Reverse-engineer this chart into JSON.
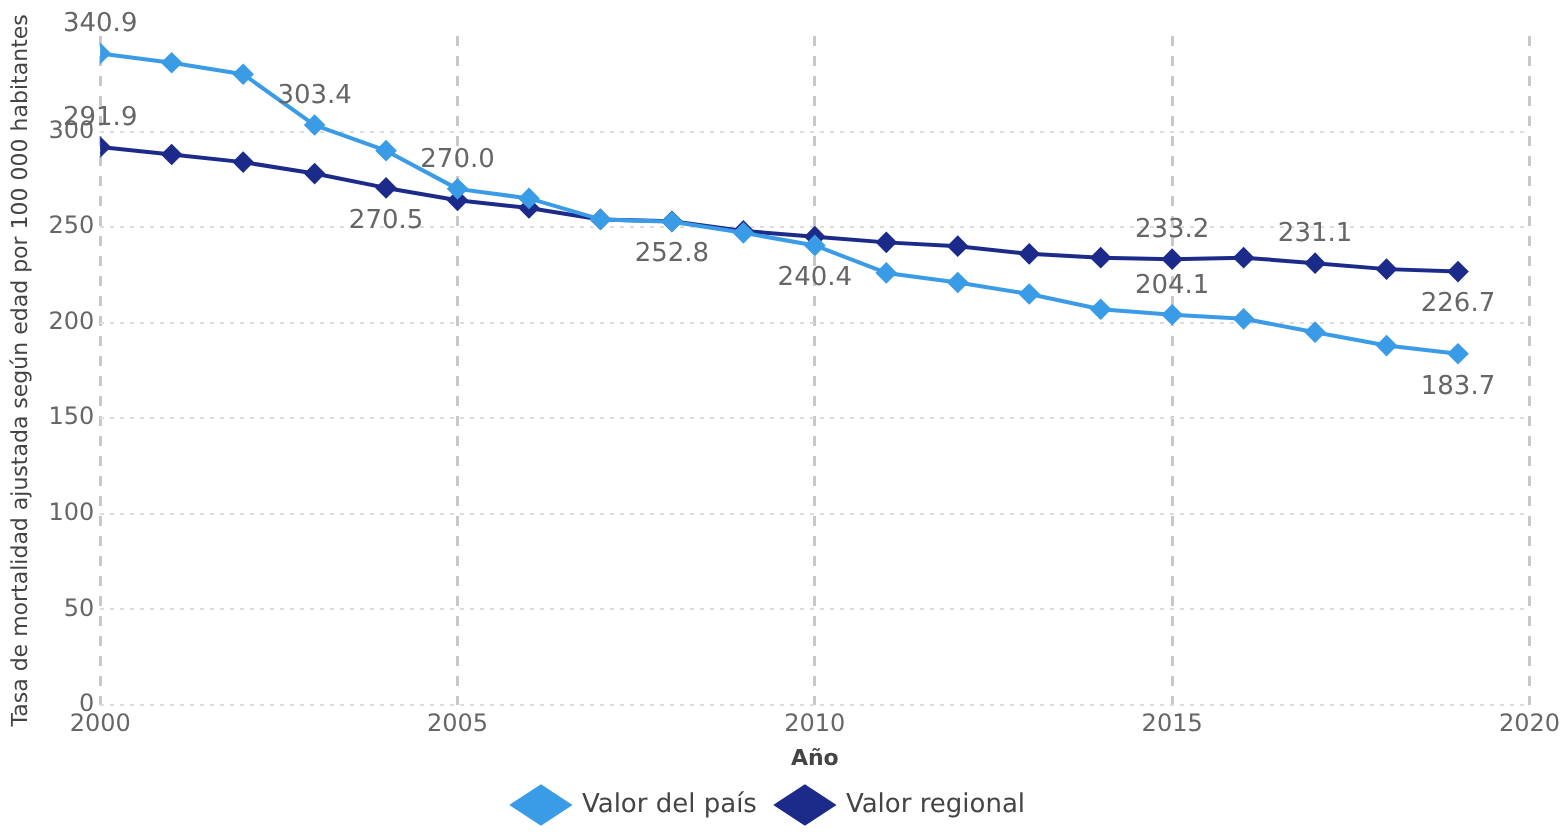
{
  "chart_data": {
    "type": "line",
    "xlabel": "Año",
    "ylabel": "Tasa de mortalidad ajustada según edad por 100 000 habitantes",
    "x": [
      2000,
      2001,
      2002,
      2003,
      2004,
      2005,
      2006,
      2007,
      2008,
      2009,
      2010,
      2011,
      2012,
      2013,
      2014,
      2015,
      2016,
      2017,
      2018,
      2019
    ],
    "series": [
      {
        "name": "Valor del país",
        "color": "#3a9be6",
        "values": [
          340.9,
          336,
          330,
          303.4,
          290,
          270.0,
          265,
          254,
          252.8,
          247,
          240.4,
          226,
          221,
          215,
          207,
          204.1,
          202,
          195,
          188,
          183.7
        ],
        "value_labels": [
          "340.9",
          null,
          null,
          "303.4",
          null,
          "270.0",
          null,
          null,
          "252.8",
          null,
          "240.4",
          null,
          null,
          null,
          null,
          "204.1",
          null,
          null,
          null,
          "183.7"
        ]
      },
      {
        "name": "Valor regional",
        "color": "#1c2a8a",
        "values": [
          291.9,
          288,
          284,
          278,
          270.5,
          264,
          260,
          254,
          253,
          248,
          245,
          242,
          240,
          236,
          234,
          233.2,
          234,
          231.1,
          228,
          226.7
        ],
        "value_labels": [
          "291.9",
          null,
          null,
          null,
          "270.5",
          null,
          null,
          null,
          null,
          null,
          null,
          null,
          null,
          null,
          null,
          "233.2",
          null,
          "231.1",
          null,
          "226.7"
        ]
      }
    ],
    "xlim": [
      2000,
      2020
    ],
    "xticks": [
      2000,
      2005,
      2010,
      2015,
      2020
    ],
    "ylim": [
      0,
      350
    ],
    "yticks": [
      0,
      50,
      100,
      150,
      200,
      250,
      300
    ],
    "grid": true,
    "legend": "bottom",
    "marker": "diamond",
    "line_style": "solid"
  }
}
